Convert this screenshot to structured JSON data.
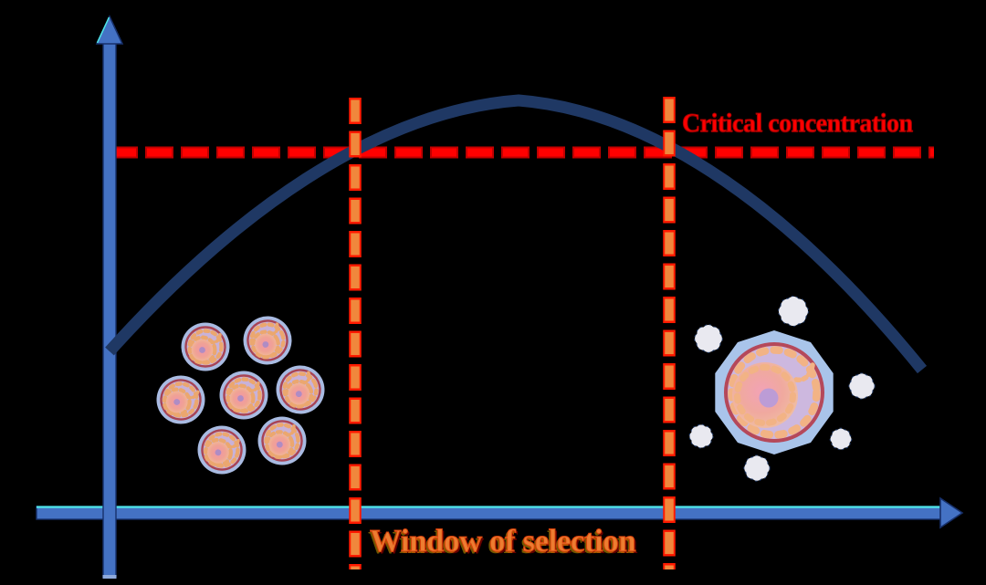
{
  "background": "#000000",
  "annotations": {
    "critical_concentration": {
      "label": "Critical concentration",
      "color": "#FF0000"
    },
    "window_of_selection": {
      "label": "Window of selection",
      "color": "#ED7D31"
    }
  },
  "axes": {
    "x_axis": {
      "color": "#4472C4",
      "arrow": "right",
      "edge_highlight": "#4EE3E6"
    },
    "y_axis": {
      "color": "#4472C4",
      "arrow": "up"
    }
  },
  "curve": {
    "name": "concentration-curve",
    "shape": "inverted-arch",
    "color": "#1F3864"
  },
  "lines": {
    "critical_line": {
      "orientation": "horizontal",
      "style": "dashed",
      "color": "#FF0000",
      "outline": "#C00000"
    },
    "selection_window_lines": {
      "orientation": "vertical",
      "style": "dashed",
      "color": "#ED7D31",
      "outline": "#FF1A00",
      "count": 2
    }
  },
  "illustrations": {
    "small_cell_cluster": {
      "icon": "follicle-cell-icon",
      "count": 7
    },
    "large_cell": {
      "icon": "large-follicle-cell-icon",
      "count": 1
    },
    "clouds": {
      "icon": "cloud-icon",
      "count": 6
    }
  }
}
